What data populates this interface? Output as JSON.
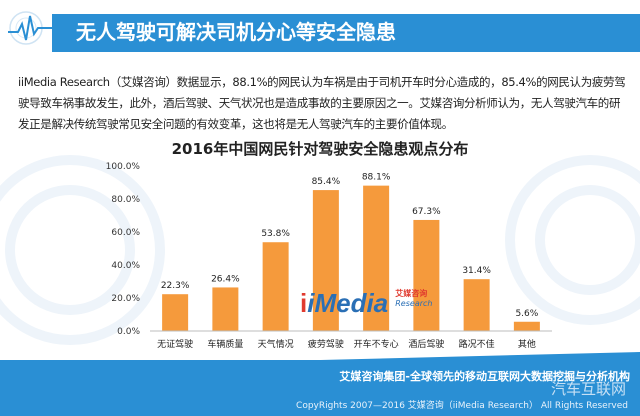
{
  "header": {
    "title": "无人驾驶可解决司机分心等安全隐患"
  },
  "intro": {
    "text": "iiMedia Research（艾媒咨询）数据显示，88.1%的网民认为车祸是由于司机开车时分心造成的，85.4%的网民认为疲劳驾驶导致车祸事故发生，此外，酒后驾驶、天气状况也是造成事故的主要原因之一。艾媒咨询分析师认为，无人驾驶汽车的研发正是解决传统驾驶常见安全问题的有效变革，这也将是无人驾驶汽车的主要价值体现。"
  },
  "chart_data": {
    "type": "bar",
    "title": "2016年中国网民针对驾驶安全隐患观点分布",
    "categories": [
      "无证驾驶",
      "车辆质量",
      "天气情况",
      "疲劳驾驶",
      "开车不专心",
      "酒后驾驶",
      "路况不佳",
      "其他"
    ],
    "values": [
      22.3,
      26.4,
      53.8,
      85.4,
      88.1,
      67.3,
      31.4,
      5.6
    ],
    "value_labels": [
      "22.3%",
      "26.4%",
      "53.8%",
      "85.4%",
      "88.1%",
      "67.3%",
      "31.4%",
      "5.6%"
    ],
    "yticks": [
      "0.0%",
      "20.0%",
      "40.0%",
      "60.0%",
      "80.0%",
      "100.0%"
    ],
    "ylim": [
      0,
      100
    ],
    "xlabel": "",
    "ylabel": "",
    "grid": false,
    "bar_color": "#f59a3c"
  },
  "watermark": {
    "i": "i",
    "media": "iMedia",
    "cn": "艾媒咨询",
    "en": "Research"
  },
  "footer": {
    "main": "艾媒咨询集团-全球领先的移动互联网大数据挖掘与分析机构",
    "brand": "汽车互联网",
    "copyright": "CopyRights 2007—2016 艾媒咨询（iiMedia Research） All Rights Reserved"
  }
}
